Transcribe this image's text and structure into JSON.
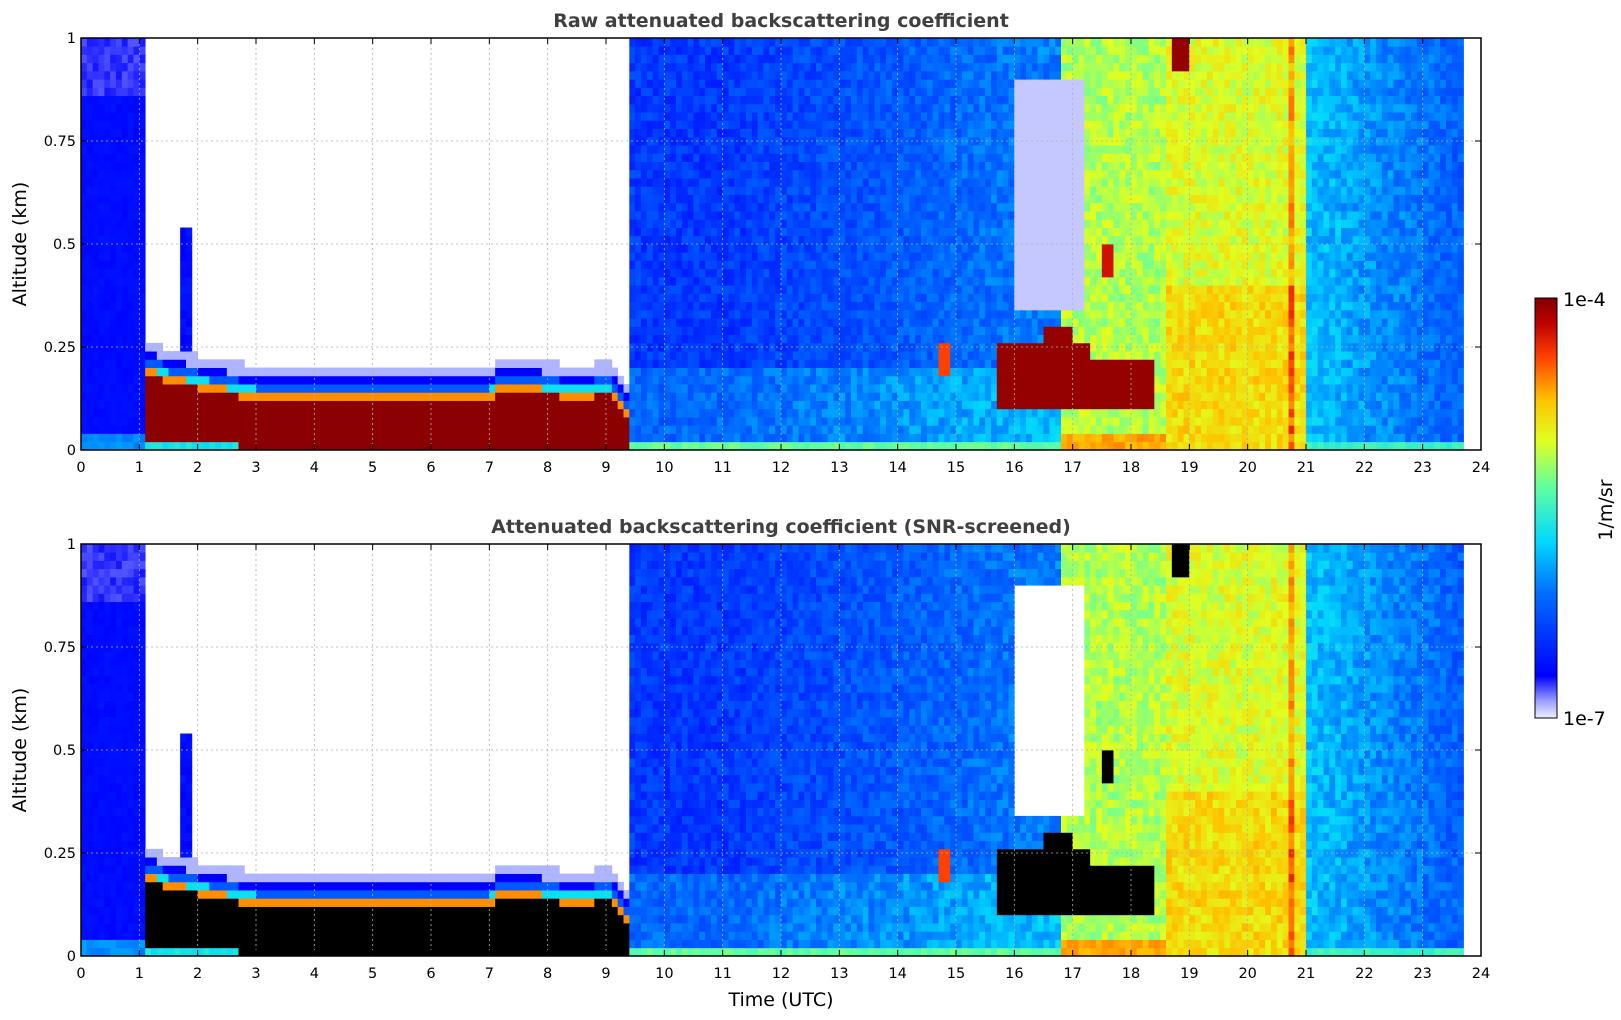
{
  "chart_data": [
    {
      "type": "heatmap",
      "title": "Raw attenuated backscattering coefficient",
      "xlabel": "",
      "ylabel": "Altitude (km)",
      "xlim": [
        0,
        24
      ],
      "ylim": [
        0,
        1
      ],
      "xticks": [
        "0",
        "1",
        "2",
        "3",
        "4",
        "5",
        "6",
        "7",
        "8",
        "9",
        "10",
        "11",
        "12",
        "13",
        "14",
        "15",
        "16",
        "17",
        "18",
        "19",
        "20",
        "21",
        "22",
        "23",
        "24"
      ],
      "yticks": [
        "0",
        "0.25",
        "0.5",
        "0.75",
        "1"
      ],
      "grid": true
    },
    {
      "type": "heatmap",
      "title": "Attenuated backscattering coefficient (SNR-screened)",
      "xlabel": "Time (UTC)",
      "ylabel": "Altitude (km)",
      "xlim": [
        0,
        24
      ],
      "ylim": [
        0,
        1
      ],
      "xticks": [
        "0",
        "1",
        "2",
        "3",
        "4",
        "5",
        "6",
        "7",
        "8",
        "9",
        "10",
        "11",
        "12",
        "13",
        "14",
        "15",
        "16",
        "17",
        "18",
        "19",
        "20",
        "21",
        "22",
        "23",
        "24"
      ],
      "yticks": [
        "0",
        "0.25",
        "0.5",
        "0.75",
        "1"
      ],
      "grid": true
    }
  ],
  "colorbar": {
    "label": "1/m/sr",
    "max_label": "1e-4",
    "min_label": "1e-7",
    "scale": "log",
    "range": [
      1e-07,
      0.0001
    ],
    "colormap": "jet"
  }
}
